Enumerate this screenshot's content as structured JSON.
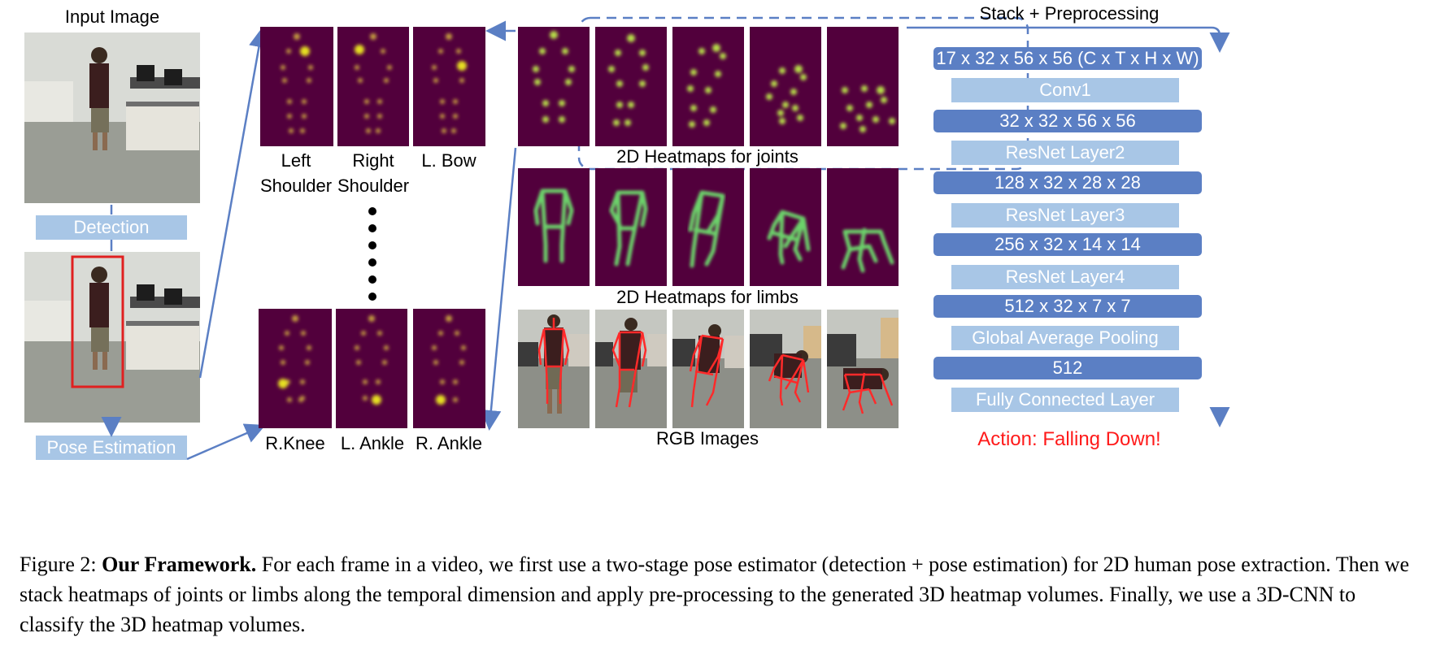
{
  "input_image_title": "Input Image",
  "detection_label": "Detection",
  "pose_estimation_label": "Pose Estimation",
  "joint_tiles_top": [
    {
      "line1": "Left",
      "line2": "Shoulder"
    },
    {
      "line1": "Right",
      "line2": "Shoulder"
    },
    {
      "line1": "L. Bow",
      "line2": ""
    }
  ],
  "joint_tiles_bottom": [
    "R.Knee",
    "L. Ankle",
    "R. Ankle"
  ],
  "heatmaps_joints_label": "2D Heatmaps for joints",
  "heatmaps_limbs_label": "2D Heatmaps for limbs",
  "rgb_images_label": "RGB Images",
  "stack_title": "Stack + Preprocessing",
  "network": [
    {
      "kind": "tensor",
      "text": "17 x 32 x 56 x 56 (C x T x H x W)"
    },
    {
      "kind": "layer",
      "text": "Conv1"
    },
    {
      "kind": "tensor",
      "text": "32 x 32 x 56 x 56"
    },
    {
      "kind": "layer",
      "text": "ResNet Layer2"
    },
    {
      "kind": "tensor",
      "text": "128 x 32 x 28 x 28"
    },
    {
      "kind": "layer",
      "text": "ResNet Layer3"
    },
    {
      "kind": "tensor",
      "text": "256 x 32 x 14 x 14"
    },
    {
      "kind": "layer",
      "text": "ResNet Layer4"
    },
    {
      "kind": "tensor",
      "text": "512 x 32 x 7 x 7"
    },
    {
      "kind": "layer",
      "text": "Global Average Pooling"
    },
    {
      "kind": "tensor",
      "text": "512"
    },
    {
      "kind": "layer",
      "text": "Fully Connected Layer"
    }
  ],
  "action_label": "Action: Falling Down!",
  "caption": {
    "figure_label": "Figure 2:",
    "bold_title": "Our Framework.",
    "text": "For each frame in a video, we first use a two-stage pose estimator (detection + pose estimation) for 2D human pose extraction. Then we stack heatmaps of joints or limbs along the temporal dimension and apply pre-processing to the generated 3D heatmap volumes. Finally, we use a 3D-CNN to classify the 3D heatmap volumes."
  },
  "colors": {
    "heatmap_bg": "#52003c",
    "heatmap_blob": "#b8e04a",
    "limb_stroke": "#6cd36a",
    "layer_box": "#a8c6e6",
    "tensor_box": "#5b7fc4",
    "arrow": "#5b7fc4",
    "detection_box": "#e02020",
    "skeleton": "#ff2a2a",
    "action_text": "#ff1a1a"
  }
}
